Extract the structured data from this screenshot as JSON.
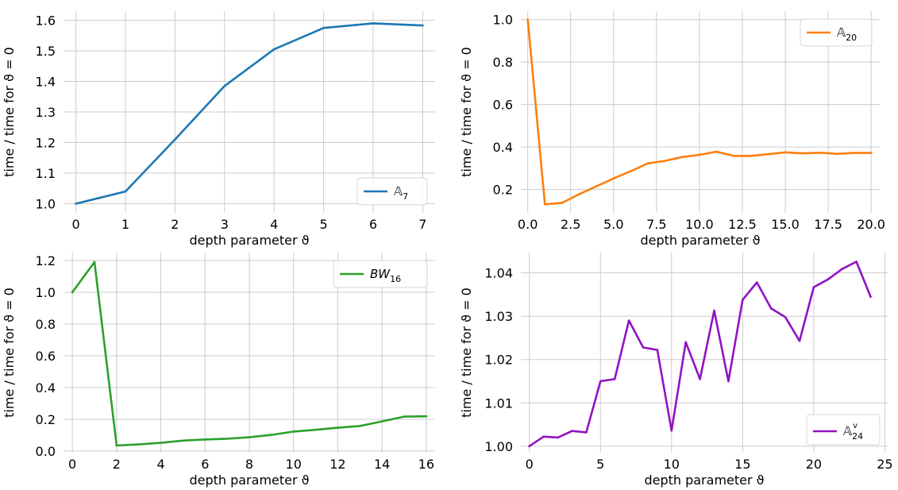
{
  "chart_data": [
    {
      "type": "line",
      "xlabel": "depth parameter ϑ",
      "ylabel": "time / time for ϑ = 0",
      "xlim": [
        -0.25,
        7.25
      ],
      "ylim": [
        0.97,
        1.63
      ],
      "xticks": [
        0,
        1,
        2,
        3,
        4,
        5,
        6,
        7
      ],
      "xtick_labels": [
        "0",
        "1",
        "2",
        "3",
        "4",
        "5",
        "6",
        "7"
      ],
      "yticks": [
        1.0,
        1.1,
        1.2,
        1.3,
        1.4,
        1.5,
        1.6
      ],
      "ytick_labels": [
        "1.0",
        "1.1",
        "1.2",
        "1.3",
        "1.4",
        "1.5",
        "1.6"
      ],
      "grid": true,
      "legend_position": "lower-right",
      "series": [
        {
          "name": "𝔸",
          "name_sub": "7",
          "color": "#1f77b4",
          "x": [
            0,
            1,
            2,
            3,
            4,
            5,
            6,
            7
          ],
          "y": [
            1.0,
            1.04,
            1.21,
            1.385,
            1.505,
            1.575,
            1.59,
            1.583
          ]
        }
      ]
    },
    {
      "type": "line",
      "xlabel": "depth parameter ϑ",
      "ylabel": "time / time for ϑ = 0",
      "xlim": [
        -0.4,
        20.5
      ],
      "ylim": [
        0.09,
        1.04
      ],
      "xticks": [
        0,
        2.5,
        5,
        7.5,
        10,
        12.5,
        15,
        17.5,
        20
      ],
      "xtick_labels": [
        "0.0",
        "2.5",
        "5.0",
        "7.5",
        "10.0",
        "12.5",
        "15.0",
        "17.5",
        "20.0"
      ],
      "yticks": [
        0.2,
        0.4,
        0.6,
        0.8,
        1.0
      ],
      "ytick_labels": [
        "0.2",
        "0.4",
        "0.6",
        "0.8",
        "1.0"
      ],
      "grid": true,
      "legend_position": "upper-right",
      "series": [
        {
          "name": "𝔸",
          "name_sub": "20",
          "color": "#ff7f0e",
          "x": [
            0,
            1,
            2,
            3,
            4,
            5,
            6,
            7,
            8,
            9,
            10,
            11,
            12,
            13,
            14,
            15,
            16,
            17,
            18,
            19,
            20
          ],
          "y": [
            1.0,
            0.13,
            0.137,
            0.178,
            0.215,
            0.252,
            0.286,
            0.323,
            0.335,
            0.353,
            0.363,
            0.378,
            0.358,
            0.358,
            0.366,
            0.375,
            0.37,
            0.373,
            0.368,
            0.372,
            0.372
          ]
        }
      ]
    },
    {
      "type": "line",
      "xlabel": "depth parameter ϑ",
      "ylabel": "time / time for ϑ = 0",
      "xlim": [
        -0.4,
        16.4
      ],
      "ylim": [
        -0.01,
        1.25
      ],
      "xticks": [
        0,
        2,
        4,
        6,
        8,
        10,
        12,
        14,
        16
      ],
      "xtick_labels": [
        "0",
        "2",
        "4",
        "6",
        "8",
        "10",
        "12",
        "14",
        "16"
      ],
      "yticks": [
        0.0,
        0.2,
        0.4,
        0.6,
        0.8,
        1.0,
        1.2
      ],
      "ytick_labels": [
        "0.0",
        "0.2",
        "0.4",
        "0.6",
        "0.8",
        "1.0",
        "1.2"
      ],
      "grid": true,
      "legend_position": "upper-right",
      "series": [
        {
          "name": "BW",
          "name_sub": "16",
          "color": "#2ca02c",
          "x": [
            0,
            1,
            2,
            3,
            4,
            5,
            6,
            7,
            8,
            9,
            10,
            11,
            12,
            13,
            14,
            15,
            16
          ],
          "y": [
            1.0,
            1.19,
            0.035,
            0.042,
            0.052,
            0.066,
            0.073,
            0.078,
            0.087,
            0.102,
            0.123,
            0.134,
            0.147,
            0.158,
            0.187,
            0.217,
            0.219
          ]
        }
      ]
    },
    {
      "type": "line",
      "xlabel": "depth parameter ϑ",
      "ylabel": "time / time for ϑ = 0",
      "xlim": [
        -0.6,
        25.2
      ],
      "ylim": [
        0.9985,
        1.0447
      ],
      "xticks": [
        0,
        5,
        10,
        15,
        20,
        25
      ],
      "xtick_labels": [
        "0",
        "5",
        "10",
        "15",
        "20",
        "25"
      ],
      "yticks": [
        1.0,
        1.01,
        1.02,
        1.03,
        1.04
      ],
      "ytick_labels": [
        "1.00",
        "1.01",
        "1.02",
        "1.03",
        "1.04"
      ],
      "grid": true,
      "legend_position": "lower-right",
      "series": [
        {
          "name": "𝔸",
          "name_sub": "24",
          "name_sup": "v",
          "color": "#9013c3",
          "x": [
            0,
            1,
            2,
            3,
            4,
            5,
            6,
            7,
            8,
            9,
            10,
            11,
            12,
            13,
            14,
            15,
            16,
            17,
            18,
            19,
            20,
            21,
            22,
            23,
            24
          ],
          "y": [
            1.0,
            1.0022,
            1.002,
            1.0035,
            1.0032,
            1.015,
            1.0155,
            1.029,
            1.0228,
            1.0222,
            1.0036,
            1.024,
            1.0155,
            1.0313,
            1.015,
            1.0338,
            1.0378,
            1.0318,
            1.0298,
            1.0243,
            1.0367,
            1.0385,
            1.0409,
            1.0426,
            1.0345
          ]
        }
      ]
    }
  ]
}
